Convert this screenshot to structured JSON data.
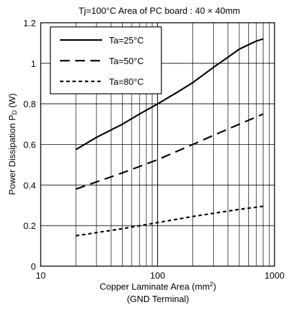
{
  "chart_data": {
    "type": "line",
    "title": "Tj=100°C   Area of PC board : 40 × 40mm",
    "xlabel_line1": "Copper Laminate Area (mm",
    "xlabel_sup": "2",
    "xlabel_close": ")",
    "xlabel_line2": "(GND Terminal)",
    "ylabel_main": "Power Dissipation P",
    "ylabel_sub": "D",
    "ylabel_unit": " (W)",
    "xscale": "log",
    "xlim": [
      10,
      1000
    ],
    "ylim": [
      0,
      1.2
    ],
    "xticks": [
      10,
      100,
      1000
    ],
    "xtick_labels": [
      "10",
      "100",
      "1000"
    ],
    "yticks": [
      0,
      0.2,
      0.4,
      0.6,
      0.8,
      1,
      1.2
    ],
    "ytick_labels": [
      "0",
      "0.2",
      "0.4",
      "0.6",
      "0.8",
      "1",
      "1.2"
    ],
    "grid": true,
    "legend_position": "top-left",
    "series": [
      {
        "name": "Ta=25°C",
        "dash": "solid",
        "points": [
          [
            20,
            0.575
          ],
          [
            30,
            0.635
          ],
          [
            50,
            0.7
          ],
          [
            70,
            0.75
          ],
          [
            100,
            0.8
          ],
          [
            150,
            0.86
          ],
          [
            200,
            0.905
          ],
          [
            300,
            0.98
          ],
          [
            400,
            1.03
          ],
          [
            500,
            1.07
          ],
          [
            700,
            1.11
          ],
          [
            800,
            1.12
          ]
        ]
      },
      {
        "name": "Ta=50°C",
        "dash": "dashed",
        "points": [
          [
            20,
            0.38
          ],
          [
            50,
            0.46
          ],
          [
            100,
            0.525
          ],
          [
            200,
            0.6
          ],
          [
            300,
            0.645
          ],
          [
            500,
            0.7
          ],
          [
            800,
            0.75
          ]
        ]
      },
      {
        "name": "Ta=80°C",
        "dash": "dotted",
        "points": [
          [
            20,
            0.15
          ],
          [
            50,
            0.185
          ],
          [
            100,
            0.215
          ],
          [
            200,
            0.245
          ],
          [
            500,
            0.28
          ],
          [
            800,
            0.295
          ]
        ]
      }
    ]
  }
}
